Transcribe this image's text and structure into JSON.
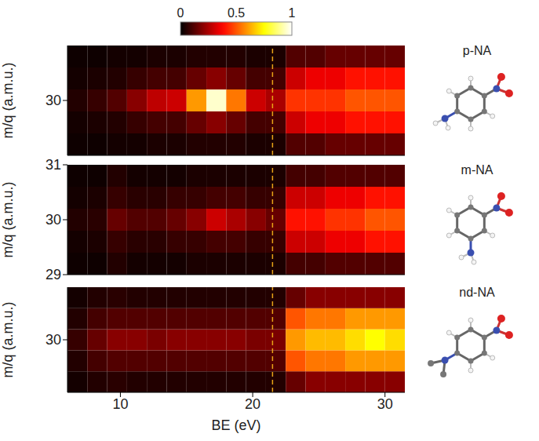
{
  "colorbar": {
    "range": [
      0,
      1
    ],
    "ticks": [
      0,
      0.5,
      1
    ]
  },
  "chart_data": [
    {
      "type": "heatmap",
      "title": "p-NA",
      "ylabel": "m/q (a.m.u.)",
      "xlim": [
        6,
        31.5
      ],
      "xticks": [
        10,
        20,
        30
      ],
      "ylim": [
        29,
        31
      ],
      "yticks": [
        30
      ],
      "tick_labels": "y",
      "reference_line": {
        "x": 21.5,
        "color": "#e8a317",
        "line_style": "dashed"
      },
      "x_bins": [
        6,
        7.5,
        9,
        10.5,
        12,
        13.5,
        15,
        16.5,
        18,
        19.5,
        21,
        22.5,
        24,
        25.5,
        27,
        28.5,
        30,
        31.5
      ],
      "y_bins": [
        29,
        29.4,
        29.8,
        30.2,
        30.6,
        31
      ],
      "cells": [
        [
          0.02,
          0.02,
          0.03,
          0.03,
          0.04,
          0.04,
          0.05,
          0.05,
          0.05,
          0.04,
          0.04,
          0.12,
          0.12,
          0.15,
          0.15,
          0.15,
          0.15
        ],
        [
          0.03,
          0.04,
          0.05,
          0.08,
          0.1,
          0.1,
          0.15,
          0.2,
          0.15,
          0.1,
          0.1,
          0.3,
          0.35,
          0.35,
          0.4,
          0.4,
          0.4
        ],
        [
          0.05,
          0.08,
          0.12,
          0.2,
          0.28,
          0.3,
          0.6,
          0.95,
          0.55,
          0.3,
          0.25,
          0.45,
          0.45,
          0.45,
          0.5,
          0.5,
          0.5
        ],
        [
          0.03,
          0.04,
          0.05,
          0.08,
          0.1,
          0.1,
          0.15,
          0.2,
          0.15,
          0.1,
          0.1,
          0.3,
          0.35,
          0.35,
          0.4,
          0.4,
          0.4
        ],
        [
          0.02,
          0.02,
          0.03,
          0.03,
          0.04,
          0.04,
          0.05,
          0.05,
          0.05,
          0.04,
          0.04,
          0.12,
          0.12,
          0.15,
          0.15,
          0.15,
          0.15
        ]
      ]
    },
    {
      "type": "heatmap",
      "title": "m-NA",
      "ylabel": "m/q (a.m.u.)",
      "xlim": [
        6,
        31.5
      ],
      "xticks": [
        10,
        20,
        30
      ],
      "ylim": [
        29,
        31
      ],
      "yticks": [
        29,
        30,
        31
      ],
      "tick_labels": "y",
      "reference_line": {
        "x": 21.5,
        "color": "#e8a317",
        "line_style": "dashed"
      },
      "x_bins": [
        6,
        7.5,
        9,
        10.5,
        12,
        13.5,
        15,
        16.5,
        18,
        19.5,
        21,
        22.5,
        24,
        25.5,
        27,
        28.5,
        30,
        31.5
      ],
      "y_bins": [
        29,
        29.4,
        29.8,
        30.2,
        30.6,
        31
      ],
      "cells": [
        [
          0.02,
          0.02,
          0.05,
          0.03,
          0.03,
          0.03,
          0.04,
          0.04,
          0.04,
          0.04,
          0.04,
          0.1,
          0.1,
          0.12,
          0.12,
          0.12,
          0.12
        ],
        [
          0.03,
          0.04,
          0.08,
          0.06,
          0.06,
          0.08,
          0.08,
          0.1,
          0.1,
          0.08,
          0.08,
          0.3,
          0.3,
          0.35,
          0.35,
          0.4,
          0.4
        ],
        [
          0.05,
          0.06,
          0.15,
          0.12,
          0.12,
          0.15,
          0.2,
          0.3,
          0.25,
          0.2,
          0.15,
          0.4,
          0.4,
          0.45,
          0.45,
          0.5,
          0.5
        ],
        [
          0.03,
          0.04,
          0.08,
          0.06,
          0.06,
          0.08,
          0.08,
          0.1,
          0.1,
          0.08,
          0.08,
          0.3,
          0.3,
          0.35,
          0.35,
          0.4,
          0.4
        ],
        [
          0.02,
          0.02,
          0.05,
          0.03,
          0.03,
          0.03,
          0.04,
          0.04,
          0.04,
          0.04,
          0.04,
          0.1,
          0.1,
          0.12,
          0.12,
          0.12,
          0.12
        ]
      ]
    },
    {
      "type": "heatmap",
      "title": "nd-NA",
      "ylabel": "m/q (a.m.u.)",
      "xlabel": "BE (eV)",
      "xlim": [
        6,
        31.5
      ],
      "xticks": [
        10,
        20,
        30
      ],
      "ylim": [
        29,
        31
      ],
      "yticks": [
        30
      ],
      "reference_line": {
        "x": 21.5,
        "color": "#e8a317",
        "line_style": "dashed"
      },
      "x_bins": [
        6,
        7.5,
        9,
        10.5,
        12,
        13.5,
        15,
        16.5,
        18,
        19.5,
        21,
        22.5,
        24,
        25.5,
        27,
        28.5,
        30,
        31.5
      ],
      "y_bins": [
        29,
        29.4,
        29.8,
        30.2,
        30.6,
        31
      ],
      "cells": [
        [
          0.03,
          0.05,
          0.06,
          0.05,
          0.05,
          0.05,
          0.05,
          0.05,
          0.05,
          0.05,
          0.05,
          0.15,
          0.2,
          0.2,
          0.2,
          0.2,
          0.2
        ],
        [
          0.05,
          0.1,
          0.12,
          0.12,
          0.12,
          0.12,
          0.12,
          0.12,
          0.12,
          0.12,
          0.12,
          0.5,
          0.55,
          0.55,
          0.6,
          0.6,
          0.6
        ],
        [
          0.08,
          0.15,
          0.2,
          0.2,
          0.18,
          0.2,
          0.2,
          0.2,
          0.2,
          0.18,
          0.18,
          0.6,
          0.65,
          0.65,
          0.7,
          0.75,
          0.7
        ],
        [
          0.05,
          0.1,
          0.12,
          0.12,
          0.12,
          0.12,
          0.12,
          0.12,
          0.12,
          0.12,
          0.12,
          0.5,
          0.55,
          0.55,
          0.6,
          0.6,
          0.6
        ],
        [
          0.03,
          0.05,
          0.06,
          0.05,
          0.05,
          0.05,
          0.05,
          0.05,
          0.05,
          0.05,
          0.05,
          0.15,
          0.2,
          0.2,
          0.2,
          0.2,
          0.2
        ]
      ]
    }
  ]
}
